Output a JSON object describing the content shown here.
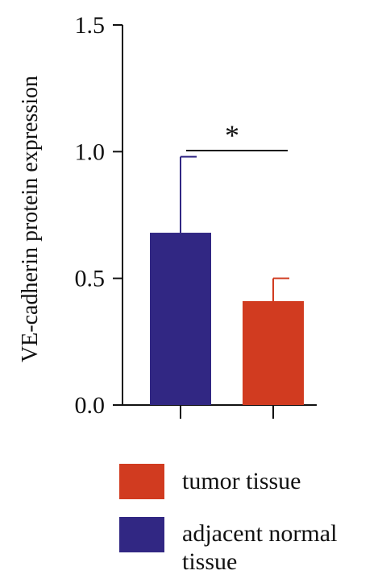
{
  "chart_data": {
    "type": "bar",
    "categories": [
      "adjacent normal tissue",
      "tumor tissue"
    ],
    "values": [
      0.68,
      0.41
    ],
    "error_upper": [
      0.98,
      0.5
    ],
    "colors": [
      "#312783",
      "#d13b20"
    ],
    "ylabel": "VE-cadherin protein expression",
    "ylim": [
      0.0,
      1.5
    ],
    "yticks": [
      "0.0",
      "0.5",
      "1.0",
      "1.5"
    ],
    "significance": "*",
    "grid": false,
    "legend_position": "bottom",
    "legend": [
      {
        "label": "tumor tissue",
        "color": "#d13b20"
      },
      {
        "label": "adjacent normal tissue",
        "color": "#312783"
      }
    ]
  }
}
